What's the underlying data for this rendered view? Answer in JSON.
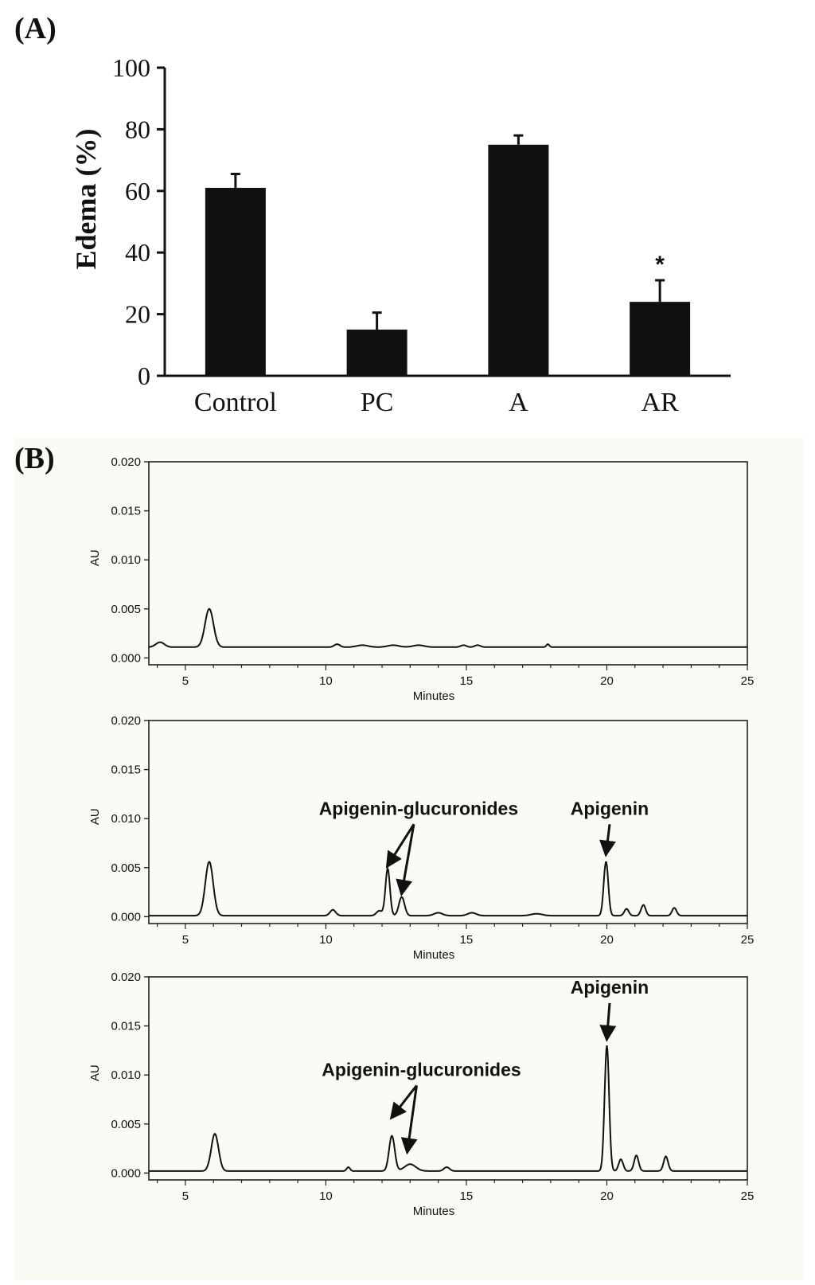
{
  "panels": {
    "a_label": "(A)",
    "b_label": "(B)"
  },
  "colors": {
    "bar": "#111111",
    "axis": "#111111",
    "panel_b_background": "#fbfaf5"
  },
  "chart_data": [
    {
      "type": "bar",
      "panel": "(A)",
      "title": "",
      "xlabel": "",
      "ylabel": "Edema (%)",
      "ylim": [
        0,
        100
      ],
      "yticks": [
        "0",
        "20",
        "40",
        "60",
        "80",
        "100"
      ],
      "categories": [
        "Control",
        "PC",
        "A",
        "AR"
      ],
      "values": [
        61,
        15,
        75,
        24
      ],
      "error_plus": [
        4.5,
        5.5,
        3,
        7
      ],
      "significance": [
        "",
        "",
        "",
        "*"
      ]
    },
    {
      "type": "line",
      "panel": "(B)",
      "title": "",
      "xlabel": "Minutes",
      "ylabel": "AU",
      "xlim": [
        3.7,
        25
      ],
      "ylim": [
        -0.0007,
        0.02
      ],
      "xticks": [
        "5",
        "10",
        "15",
        "20",
        "25"
      ],
      "yticks": [
        "0.000",
        "0.005",
        "0.010",
        "0.015",
        "0.020"
      ],
      "baseline": 0.0011,
      "series": [
        {
          "peaks": [
            [
              4.1,
              0.0005,
              0.15
            ],
            [
              5.85,
              0.0039,
              0.15
            ],
            [
              10.4,
              0.0003,
              0.1
            ],
            [
              11.3,
              0.0002,
              0.2
            ],
            [
              12.4,
              0.0002,
              0.2
            ],
            [
              13.3,
              0.0002,
              0.2
            ],
            [
              14.9,
              0.0002,
              0.1
            ],
            [
              15.4,
              0.0002,
              0.1
            ],
            [
              17.9,
              0.0003,
              0.05
            ]
          ],
          "annotations": []
        },
        {
          "baseline": 0.0001,
          "peaks": [
            [
              5.85,
              0.0055,
              0.14
            ],
            [
              10.25,
              0.0006,
              0.1
            ],
            [
              11.9,
              0.0005,
              0.1
            ],
            [
              12.2,
              0.0048,
              0.08
            ],
            [
              12.7,
              0.0019,
              0.1
            ],
            [
              14,
              0.0003,
              0.15
            ],
            [
              15.2,
              0.0003,
              0.15
            ],
            [
              17.5,
              0.0002,
              0.2
            ],
            [
              19.97,
              0.0055,
              0.08
            ],
            [
              20.7,
              0.0007,
              0.08
            ],
            [
              21.3,
              0.0011,
              0.08
            ],
            [
              22.4,
              0.0008,
              0.08
            ]
          ],
          "annotations": [
            {
              "text": "Apigenin-glucuronides",
              "x": 13.3,
              "y": 0.0104,
              "targets": [
                [
                  12.2,
                  0.0052
                ],
                [
                  12.7,
                  0.0024
                ]
              ]
            },
            {
              "text": "Apigenin",
              "x": 20.1,
              "y": 0.0104,
              "targets": [
                [
                  19.97,
                  0.0064
                ]
              ]
            }
          ]
        },
        {
          "baseline": 0.0002,
          "peaks": [
            [
              6.05,
              0.0038,
              0.13
            ],
            [
              10.8,
              0.0004,
              0.06
            ],
            [
              12.35,
              0.0036,
              0.1
            ],
            [
              13,
              0.0007,
              0.2
            ],
            [
              14.3,
              0.0004,
              0.1
            ],
            [
              20,
              0.0128,
              0.08
            ],
            [
              20.5,
              0.0012,
              0.08
            ],
            [
              21.05,
              0.0016,
              0.08
            ],
            [
              22.1,
              0.0015,
              0.08
            ]
          ],
          "annotations": [
            {
              "text": "Apigenin-glucuronides",
              "x": 13.4,
              "y": 0.0099,
              "targets": [
                [
                  12.35,
                  0.0057
                ],
                [
                  12.9,
                  0.0022
                ]
              ]
            },
            {
              "text": "Apigenin",
              "x": 20.1,
              "y": 0.0183,
              "targets": [
                [
                  20,
                  0.0137
                ]
              ]
            }
          ]
        }
      ]
    }
  ]
}
